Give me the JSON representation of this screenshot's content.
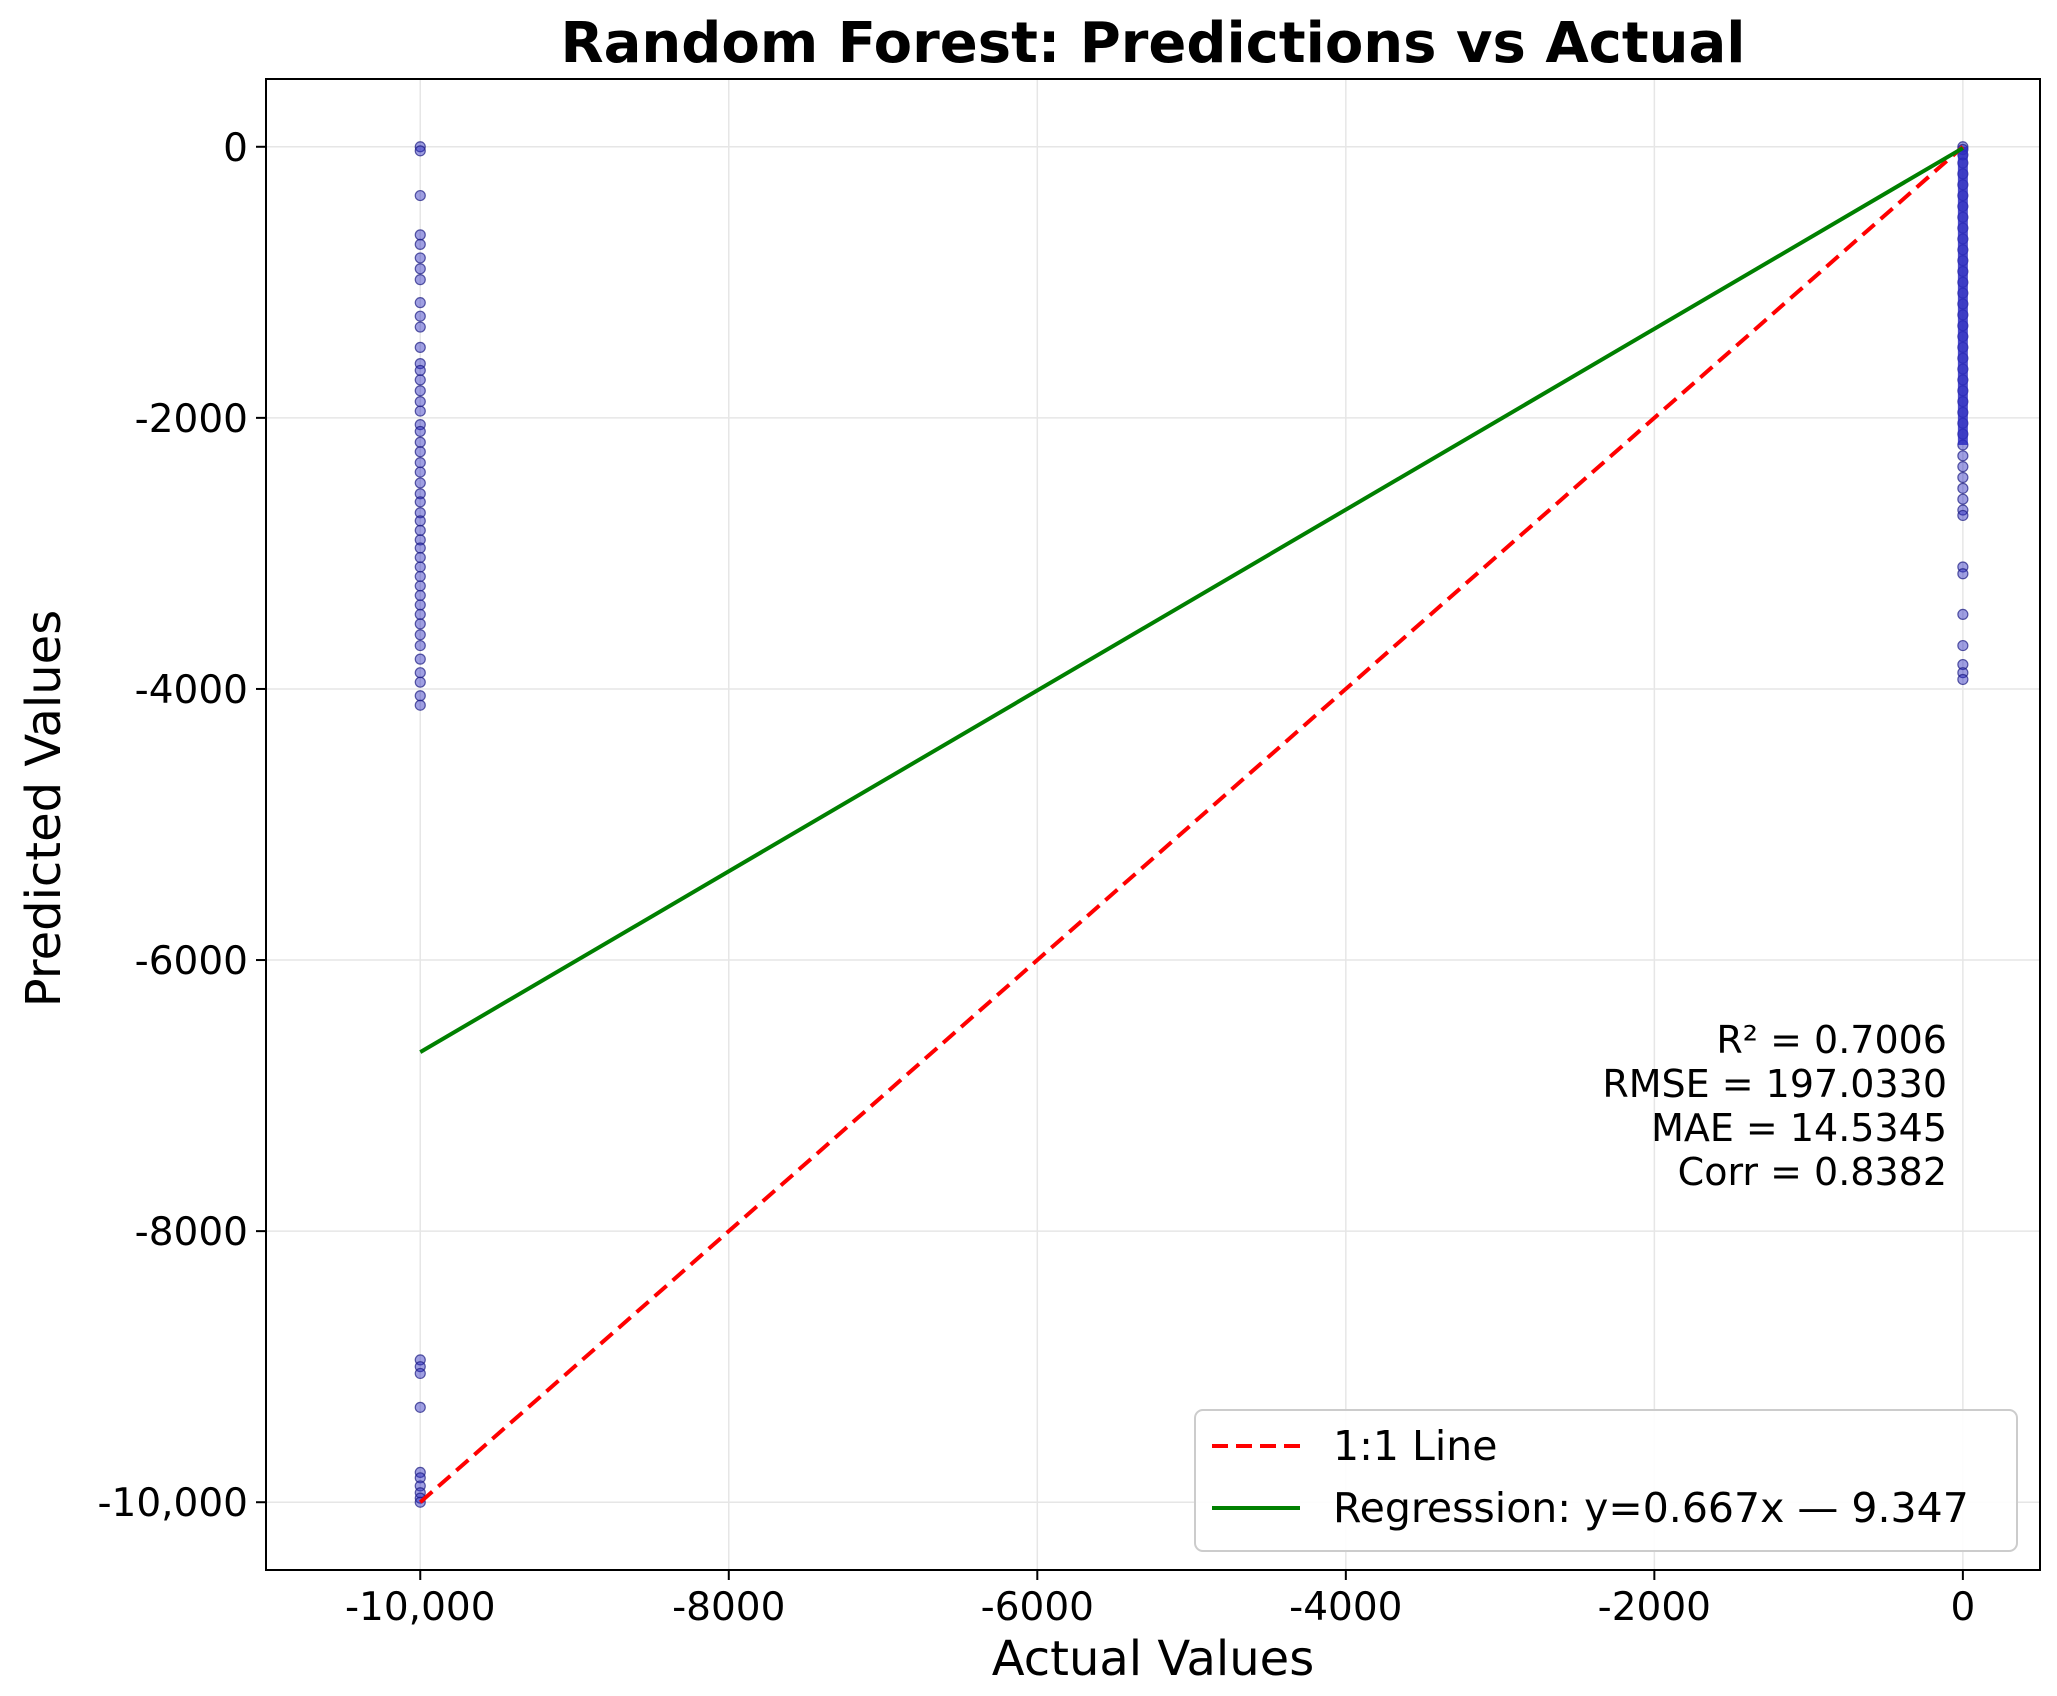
{
  "chart_data": {
    "type": "scatter",
    "title": "Random Forest: Predictions vs Actual",
    "xlabel": "Actual Values",
    "ylabel": "Predicted Values",
    "xlim": [
      -11000,
      500
    ],
    "ylim": [
      -10500,
      500
    ],
    "grid": true,
    "x_ticks": [
      {
        "value": -10000,
        "label": "-10,000"
      },
      {
        "value": -8000,
        "label": "-8000"
      },
      {
        "value": -6000,
        "label": "-6000"
      },
      {
        "value": -4000,
        "label": "-4000"
      },
      {
        "value": -2000,
        "label": "-2000"
      },
      {
        "value": 0,
        "label": "0"
      }
    ],
    "y_ticks": [
      {
        "value": 0,
        "label": "0"
      },
      {
        "value": -2000,
        "label": "-2000"
      },
      {
        "value": -4000,
        "label": "-4000"
      },
      {
        "value": -6000,
        "label": "-6000"
      },
      {
        "value": -8000,
        "label": "-8000"
      },
      {
        "value": -10000,
        "label": "-10,000"
      }
    ],
    "point_color": "#2b2bbf",
    "points": {
      "x_-10000": [
        0,
        -30,
        -360,
        -650,
        -720,
        -820,
        -900,
        -980,
        -1150,
        -1250,
        -1330,
        -1480,
        -1600,
        -1650,
        -1720,
        -1800,
        -1880,
        -1950,
        -2050,
        -2100,
        -2180,
        -2250,
        -2330,
        -2400,
        -2480,
        -2560,
        -2620,
        -2700,
        -2760,
        -2830,
        -2900,
        -2960,
        -3030,
        -3100,
        -3170,
        -3240,
        -3310,
        -3380,
        -3450,
        -3520,
        -3600,
        -3680,
        -3780,
        -3880,
        -3950,
        -4050,
        -4120,
        -8950,
        -9000,
        -9050,
        -9300,
        -9780,
        -9820,
        -9880,
        -9930,
        -9970,
        -10000
      ],
      "x_0": [
        0,
        -20,
        -60,
        -120,
        -200,
        -280,
        -360,
        -440,
        -520,
        -600,
        -680,
        -760,
        -840,
        -920,
        -1000,
        -1080,
        -1160,
        -1240,
        -1320,
        -1400,
        -1480,
        -1560,
        -1640,
        -1720,
        -1800,
        -1880,
        -1960,
        -2040,
        -2120,
        -2200,
        -2280,
        -2360,
        -2440,
        -2520,
        -2600,
        -2680,
        -2720,
        -3100,
        -3150,
        -3450,
        -3680,
        -3820,
        -3880,
        -3930
      ]
    },
    "series": [
      {
        "name": "1:1 Line",
        "x": [
          -10000,
          0
        ],
        "y": [
          -10000,
          0
        ],
        "color": "#ff0000",
        "style": "dashed"
      },
      {
        "name": "Regression: y=0.667x — 9.347",
        "x": [
          -10000,
          0
        ],
        "y": [
          -6679.3,
          -9.347
        ],
        "color": "#008000",
        "style": "solid"
      }
    ],
    "stats": [
      "R² = 0.7006",
      "RMSE = 197.0330",
      "MAE = 14.5345",
      "Corr = 0.8382"
    ],
    "legend_placement": "lower-right"
  }
}
